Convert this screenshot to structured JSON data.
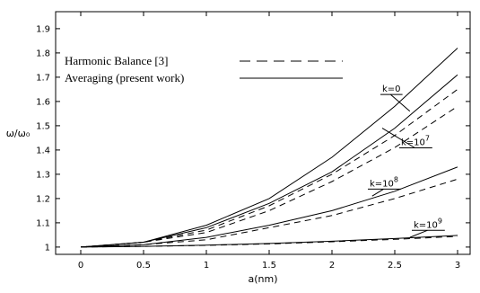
{
  "chart_data": {
    "type": "line",
    "xlabel": "a(nm)",
    "ylabel": "ω/ω₀",
    "xlim": [
      -0.2,
      3.1
    ],
    "ylim": [
      0.97,
      1.97
    ],
    "xticks": [
      0,
      0.5,
      1,
      1.5,
      2,
      2.5,
      3
    ],
    "xtick_labels": [
      "0",
      "0.5",
      "1",
      "1.5",
      "2",
      "2.5",
      "3"
    ],
    "yticks": [
      1,
      1.1,
      1.2,
      1.3,
      1.4,
      1.5,
      1.6,
      1.7,
      1.8,
      1.9
    ],
    "ytick_labels": [
      "1",
      "1.1",
      "1.2",
      "1.3",
      "1.4",
      "1.5",
      "1.6",
      "1.7",
      "1.8",
      "1.9"
    ],
    "legend": {
      "placement": "top-left",
      "entries": [
        {
          "label": "Harmonic Balance [3]",
          "style": "dashed"
        },
        {
          "label": "Averaging (present work)",
          "style": "solid"
        }
      ]
    },
    "annotations": [
      {
        "base": "k=0",
        "exponent": "",
        "x": 2.4,
        "y": 1.64,
        "target_x": 2.62,
        "target_y": 1.56
      },
      {
        "base": "k=10",
        "exponent": "7",
        "x": 2.55,
        "y": 1.42,
        "target_x": 2.4,
        "target_y": 1.49
      },
      {
        "base": "k=10",
        "exponent": "8",
        "x": 2.3,
        "y": 1.25,
        "target_x": 2.32,
        "target_y": 1.21
      },
      {
        "base": "k=10",
        "exponent": "9",
        "x": 2.65,
        "y": 1.08,
        "target_x": 2.62,
        "target_y": 1.04
      }
    ],
    "series": [
      {
        "style": "solid",
        "x": [
          0,
          0.5,
          1,
          1.5,
          2,
          2.5,
          3
        ],
        "y": [
          1,
          1.02,
          1.09,
          1.2,
          1.37,
          1.58,
          1.82
        ]
      },
      {
        "style": "solid",
        "x": [
          0,
          0.5,
          1,
          1.5,
          2,
          2.5,
          3
        ],
        "y": [
          1,
          1.02,
          1.08,
          1.18,
          1.31,
          1.49,
          1.71
        ]
      },
      {
        "style": "dashed",
        "x": [
          0,
          0.5,
          1,
          1.5,
          2,
          2.5,
          3
        ],
        "y": [
          1,
          1.02,
          1.07,
          1.17,
          1.3,
          1.46,
          1.65
        ]
      },
      {
        "style": "dashed",
        "x": [
          0,
          0.5,
          1,
          1.5,
          2,
          2.5,
          3
        ],
        "y": [
          1,
          1.02,
          1.06,
          1.15,
          1.27,
          1.41,
          1.58
        ]
      },
      {
        "style": "solid",
        "x": [
          0,
          0.5,
          1,
          1.5,
          2,
          2.5,
          3
        ],
        "y": [
          1,
          1.01,
          1.04,
          1.09,
          1.15,
          1.23,
          1.33
        ]
      },
      {
        "style": "dashed",
        "x": [
          0,
          0.5,
          1,
          1.5,
          2,
          2.5,
          3
        ],
        "y": [
          1,
          1.01,
          1.03,
          1.08,
          1.13,
          1.2,
          1.28
        ]
      },
      {
        "style": "solid",
        "x": [
          0,
          0.5,
          1,
          1.5,
          2,
          2.5,
          3
        ],
        "y": [
          1,
          1.003,
          1.008,
          1.015,
          1.024,
          1.035,
          1.048
        ]
      },
      {
        "style": "dashed",
        "x": [
          0,
          0.5,
          1,
          1.5,
          2,
          2.5,
          3
        ],
        "y": [
          1,
          1.003,
          1.007,
          1.013,
          1.022,
          1.032,
          1.044
        ]
      }
    ]
  }
}
